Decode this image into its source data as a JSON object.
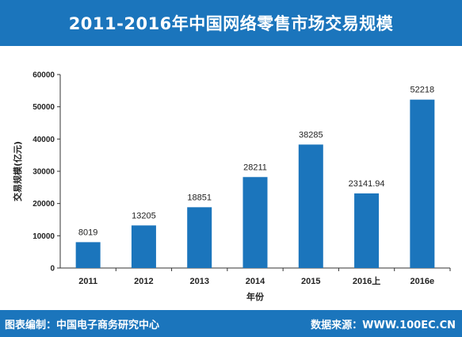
{
  "header": {
    "title": "2011-2016年中国网络零售市场交易规模"
  },
  "footer": {
    "left": "图表编制：中国电子商务研究中心",
    "right": "数据来源：WWW.100EC.CN"
  },
  "colors": {
    "accent": "#1b75bc",
    "bar": "#1b75bc"
  },
  "chart_data": {
    "type": "bar",
    "title": "2011-2016年中国网络零售市场交易规模",
    "xlabel": "年份",
    "ylabel": "交易规模(亿元)",
    "categories": [
      "2011",
      "2012",
      "2013",
      "2014",
      "2015",
      "2016上",
      "2016e"
    ],
    "values": [
      8019,
      13205,
      18851,
      28211,
      38285,
      23141.94,
      52218
    ],
    "value_labels": [
      "8019",
      "13205",
      "18851",
      "28211",
      "38285",
      "23141.94",
      "52218"
    ],
    "ylim": [
      0,
      60000
    ],
    "yticks": [
      "0",
      "10000",
      "20000",
      "30000",
      "40000",
      "50000",
      "60000"
    ],
    "grid": false,
    "legend": "none"
  }
}
